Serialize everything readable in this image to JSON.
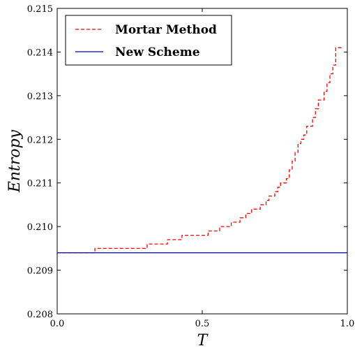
{
  "chart_data": {
    "type": "line",
    "title": "",
    "xlabel": "T",
    "ylabel": "Entropy",
    "xlim": [
      0.0,
      1.0
    ],
    "ylim": [
      0.208,
      0.215
    ],
    "x_ticks": [
      0.0,
      0.5,
      1.0
    ],
    "x_tick_labels": [
      "0.0",
      "0.5",
      "1.0"
    ],
    "y_ticks": [
      0.208,
      0.209,
      0.21,
      0.211,
      0.212,
      0.213,
      0.214,
      0.215
    ],
    "y_tick_labels": [
      "0.208",
      "0.209",
      "0.210",
      "0.211",
      "0.212",
      "0.213",
      "0.214",
      "0.215"
    ],
    "grid": false,
    "legend_position": "top-left",
    "series": [
      {
        "name": "Mortar Method",
        "color": "#ff0000",
        "style": "dashed",
        "x": [
          0.0,
          0.13,
          0.13,
          0.31,
          0.31,
          0.38,
          0.38,
          0.43,
          0.43,
          0.52,
          0.52,
          0.56,
          0.56,
          0.6,
          0.6,
          0.63,
          0.63,
          0.65,
          0.65,
          0.67,
          0.67,
          0.7,
          0.7,
          0.72,
          0.72,
          0.73,
          0.73,
          0.75,
          0.75,
          0.76,
          0.76,
          0.77,
          0.77,
          0.79,
          0.79,
          0.8,
          0.8,
          0.81,
          0.81,
          0.82,
          0.82,
          0.83,
          0.83,
          0.84,
          0.84,
          0.85,
          0.85,
          0.86,
          0.86,
          0.88,
          0.88,
          0.89,
          0.89,
          0.9,
          0.9,
          0.92,
          0.92,
          0.93,
          0.93,
          0.94,
          0.94,
          0.95,
          0.95,
          0.96,
          0.96,
          0.98
        ],
        "y": [
          0.2094,
          0.2094,
          0.2095,
          0.2095,
          0.2096,
          0.2096,
          0.2097,
          0.2097,
          0.2098,
          0.2098,
          0.2099,
          0.2099,
          0.21,
          0.21,
          0.2101,
          0.2101,
          0.2102,
          0.2102,
          0.2103,
          0.2103,
          0.2104,
          0.2104,
          0.2105,
          0.2105,
          0.2106,
          0.2106,
          0.2107,
          0.2107,
          0.2108,
          0.2108,
          0.2109,
          0.2109,
          0.211,
          0.211,
          0.2111,
          0.2111,
          0.2113,
          0.2113,
          0.2115,
          0.2115,
          0.2117,
          0.2117,
          0.2119,
          0.2119,
          0.212,
          0.212,
          0.2121,
          0.2121,
          0.2123,
          0.2123,
          0.2125,
          0.2125,
          0.2127,
          0.2127,
          0.2129,
          0.2129,
          0.2131,
          0.2131,
          0.2133,
          0.2133,
          0.2135,
          0.2135,
          0.2137,
          0.2137,
          0.2141,
          0.2141
        ]
      },
      {
        "name": "New Scheme",
        "color": "#0000bf",
        "style": "solid",
        "x": [
          0.0,
          1.0
        ],
        "y": [
          0.2094,
          0.2094
        ]
      }
    ]
  }
}
